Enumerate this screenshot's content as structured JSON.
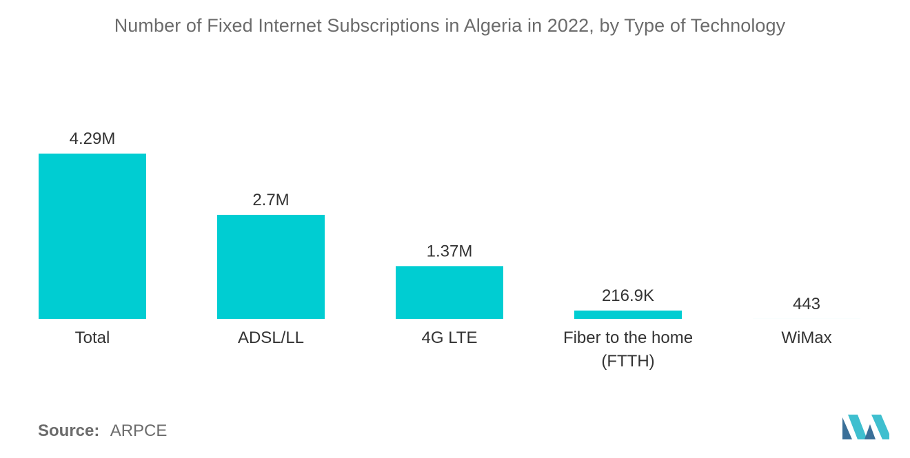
{
  "title": "Number of Fixed Internet Subscriptions in Algeria in 2022, by Type of Technology",
  "source": {
    "label": "Source:",
    "value": "ARPCE"
  },
  "colors": {
    "bar": "#00cdd2",
    "title": "#6b6b6b",
    "text": "#333333",
    "logo_dark": "#3a6f98",
    "logo_light": "#3fbfcf"
  },
  "chart_data": {
    "type": "bar",
    "categories": [
      "Total",
      "ADSL/LL",
      "4G LTE",
      "Fiber to the home (FTTH)",
      "WiMax"
    ],
    "category_lines": [
      [
        "Total"
      ],
      [
        "ADSL/LL"
      ],
      [
        "4G LTE"
      ],
      [
        "Fiber to the home",
        "(FTTH)"
      ],
      [
        "WiMax"
      ]
    ],
    "values": [
      4290000,
      2700000,
      1370000,
      216900,
      443
    ],
    "data_labels": [
      "4.29M",
      "2.7M",
      "1.37M",
      "216.9K",
      "443"
    ],
    "title": "Number of Fixed Internet Subscriptions in Algeria in 2022, by Type of Technology",
    "xlabel": "",
    "ylabel": "",
    "ylim": [
      0,
      4290000
    ],
    "grid": false,
    "legend": "none"
  }
}
